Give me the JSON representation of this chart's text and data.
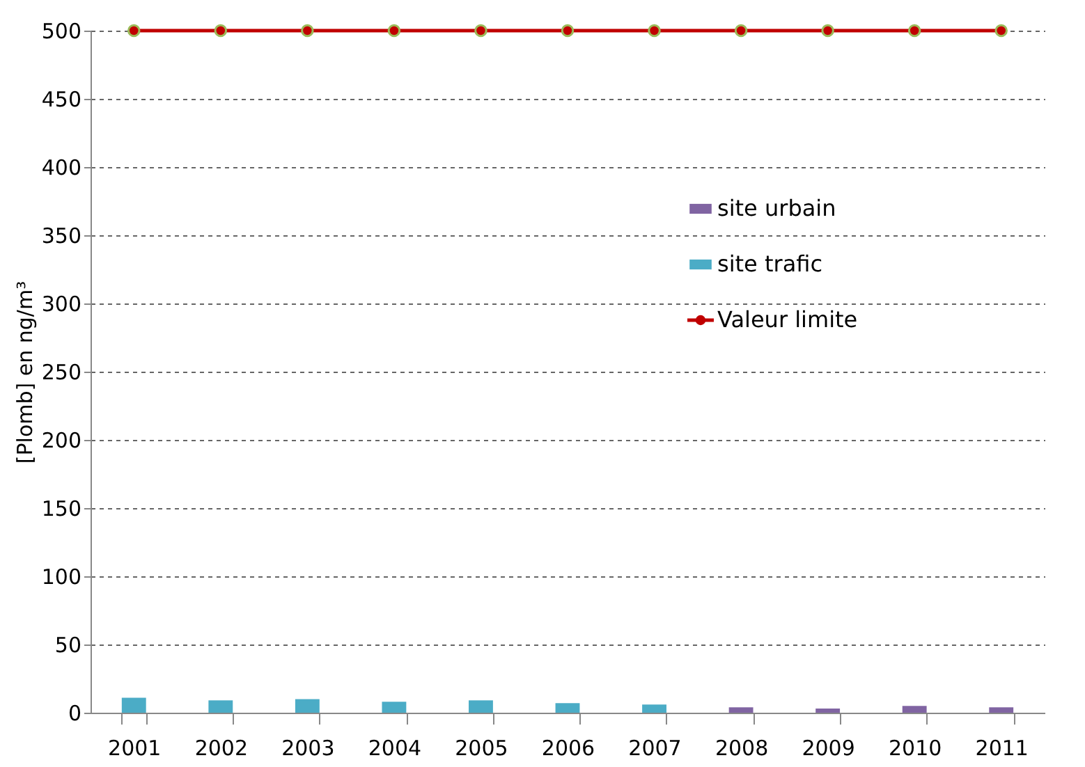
{
  "chart_data": {
    "type": "bar",
    "ylabel": "[Plomb] en ng/m³",
    "categories": [
      "2001",
      "2002",
      "2003",
      "2004",
      "2005",
      "2006",
      "2007",
      "2008",
      "2009",
      "2010",
      "2011"
    ],
    "series": [
      {
        "name": "site urbain",
        "color": "#8064a2",
        "values": [
          null,
          null,
          null,
          null,
          null,
          null,
          null,
          4,
          3,
          5,
          4
        ]
      },
      {
        "name": "site trafic",
        "color": "#4bacc6",
        "values": [
          11,
          9,
          10,
          8,
          9,
          7,
          6,
          null,
          null,
          null,
          null
        ]
      },
      {
        "name": "Valeur limite",
        "type": "line",
        "color": "#c00000",
        "marker": "circle",
        "values": [
          500,
          500,
          500,
          500,
          500,
          500,
          500,
          500,
          500,
          500,
          500
        ]
      }
    ],
    "ylim": [
      0,
      500
    ],
    "yticks": [
      0,
      50,
      100,
      150,
      200,
      250,
      300,
      350,
      400,
      450,
      500
    ],
    "grid": "y",
    "legend": "right"
  }
}
